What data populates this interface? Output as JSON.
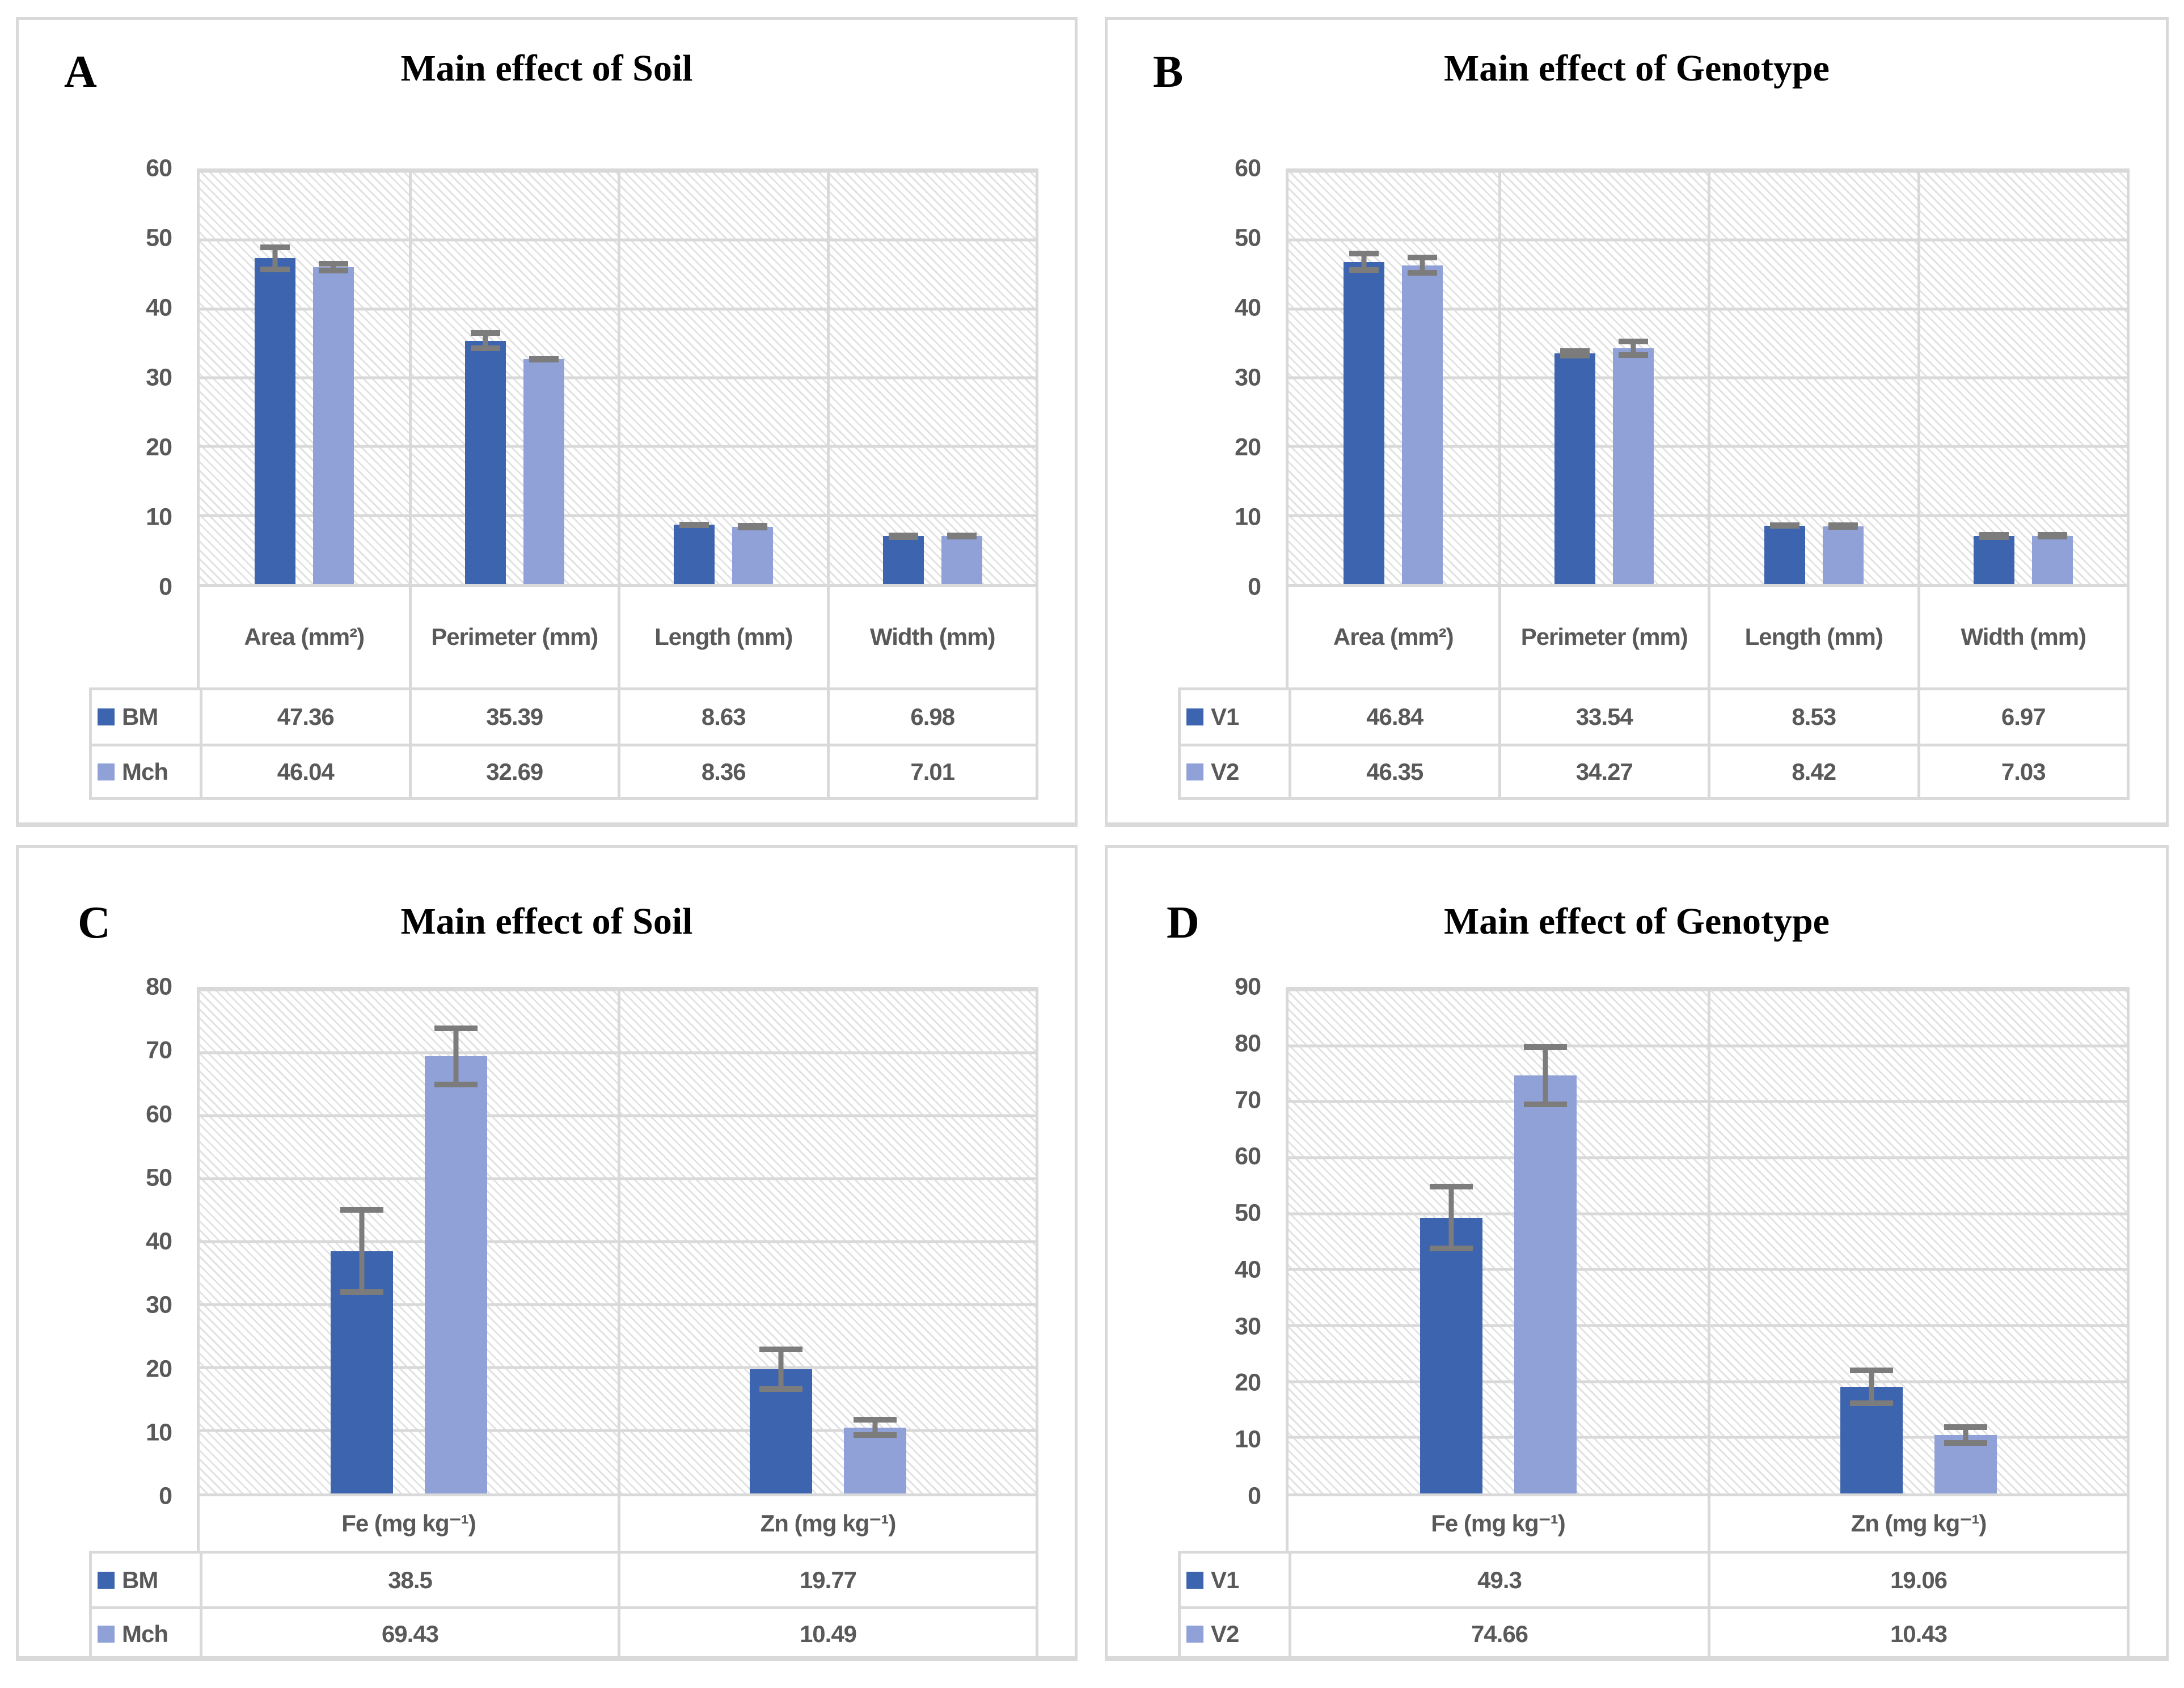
{
  "figure": {
    "background": "#ffffff",
    "description": "Four-panel bar chart figure with data tables"
  },
  "colors": {
    "series_dark_blue": "#3d64ae",
    "series_light_blue": "#8fa1d7",
    "error_bar": "#7c7c7c",
    "gridline": "#d9d9d9",
    "panel_border": "#d9d9d9",
    "axis_text": "#595959",
    "title_text": "#000000",
    "plot_hatch_line": "#e2e2e2"
  },
  "panels": [
    {
      "label": "A"
    },
    {
      "label": "B"
    },
    {
      "label": "C"
    },
    {
      "label": "D"
    }
  ],
  "chart_data": [
    {
      "type": "bar",
      "title": "Main effect of Soil",
      "categories": [
        "Area (mm²)",
        "Perimeter (mm)",
        "Length (mm)",
        "Width (mm)"
      ],
      "series": [
        {
          "name": "BM",
          "color": "#3d64ae",
          "values": [
            47.36,
            35.39,
            8.63,
            6.98
          ],
          "errors": [
            2.0,
            1.5,
            0.35,
            0.3
          ]
        },
        {
          "name": "Mch",
          "color": "#8fa1d7",
          "values": [
            46.04,
            32.69,
            8.36,
            7.01
          ],
          "errors": [
            0.9,
            0.45,
            0.3,
            0.3
          ]
        }
      ],
      "ylim": [
        0,
        60
      ],
      "ytick_step": 10,
      "grid": true,
      "plot_background": "diagonal-hatch",
      "legend_position": "table-left"
    },
    {
      "type": "bar",
      "title": "Main effect of Genotype",
      "categories": [
        "Area (mm²)",
        "Perimeter (mm)",
        "Length (mm)",
        "Width (mm)"
      ],
      "series": [
        {
          "name": "V1",
          "color": "#3d64ae",
          "values": [
            46.84,
            33.54,
            8.53,
            6.97
          ],
          "errors": [
            1.6,
            0.75,
            0.35,
            0.25
          ]
        },
        {
          "name": "V2",
          "color": "#8fa1d7",
          "values": [
            46.35,
            34.27,
            8.42,
            7.03
          ],
          "errors": [
            1.5,
            1.4,
            0.3,
            0.3
          ]
        }
      ],
      "ylim": [
        0,
        60
      ],
      "ytick_step": 10,
      "grid": true,
      "plot_background": "diagonal-hatch",
      "legend_position": "table-left"
    },
    {
      "type": "bar",
      "title": "Main effect of Soil",
      "categories": [
        "Fe (mg kg⁻¹)",
        "Zn (mg kg⁻¹)"
      ],
      "series": [
        {
          "name": "BM",
          "color": "#3d64ae",
          "values": [
            38.5,
            19.77
          ],
          "errors": [
            7.0,
            3.6
          ]
        },
        {
          "name": "Mch",
          "color": "#8fa1d7",
          "values": [
            69.43,
            10.49
          ],
          "errors": [
            4.9,
            1.7
          ]
        }
      ],
      "ylim": [
        0,
        80
      ],
      "ytick_step": 10,
      "grid": true,
      "plot_background": "diagonal-hatch",
      "legend_position": "table-left"
    },
    {
      "type": "bar",
      "title": "Main effect of Genotype",
      "categories": [
        "Fe (mg kg⁻¹)",
        "Zn (mg kg⁻¹)"
      ],
      "series": [
        {
          "name": "V1",
          "color": "#3d64ae",
          "values": [
            49.3,
            19.06
          ],
          "errors": [
            6.0,
            3.4
          ]
        },
        {
          "name": "V2",
          "color": "#8fa1d7",
          "values": [
            74.66,
            10.43
          ],
          "errors": [
            5.6,
            1.9
          ]
        }
      ],
      "ylim": [
        0,
        90
      ],
      "ytick_step": 10,
      "grid": true,
      "plot_background": "diagonal-hatch",
      "legend_position": "table-left"
    }
  ]
}
